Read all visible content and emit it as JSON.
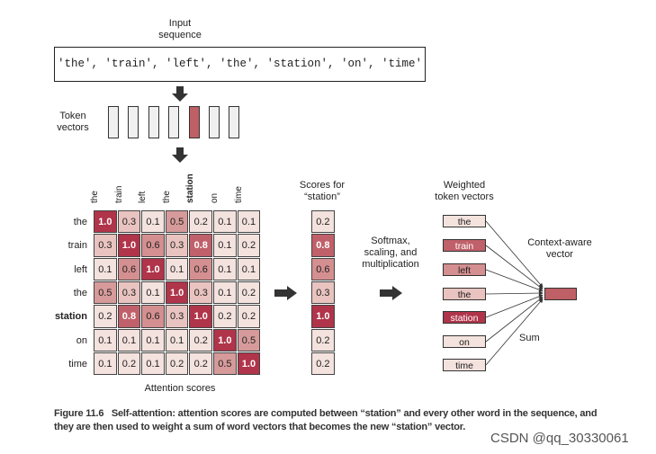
{
  "input_label": "Input sequence",
  "input_sequence": "'the', 'train', 'left', 'the', 'station', 'on', 'time'",
  "token_vectors_label": "Token vectors",
  "tokens": [
    "the",
    "train",
    "left",
    "the",
    "station",
    "on",
    "time"
  ],
  "highlight_token_index": 4,
  "matrix": [
    [
      1.0,
      0.3,
      0.1,
      0.5,
      0.2,
      0.1,
      0.1
    ],
    [
      0.3,
      1.0,
      0.6,
      0.3,
      0.8,
      0.1,
      0.2
    ],
    [
      0.1,
      0.6,
      1.0,
      0.1,
      0.6,
      0.1,
      0.1
    ],
    [
      0.5,
      0.3,
      0.1,
      1.0,
      0.3,
      0.1,
      0.2
    ],
    [
      0.2,
      0.8,
      0.6,
      0.3,
      1.0,
      0.2,
      0.2
    ],
    [
      0.1,
      0.1,
      0.1,
      0.1,
      0.2,
      1.0,
      0.5
    ],
    [
      0.1,
      0.2,
      0.1,
      0.2,
      0.2,
      0.5,
      1.0
    ]
  ],
  "matrix_label": "Attention scores",
  "scores_label": "Scores for “station”",
  "station_scores": [
    "0.2",
    "0.8",
    "0.6",
    "0.3",
    "1.0",
    "0.2",
    "0.2"
  ],
  "softmax_label": "Softmax, scaling, and multiplication",
  "weighted_label": "Weighted token vectors",
  "context_label": "Context-aware vector",
  "sum_label": "Sum",
  "caption_title": "Figure 11.6",
  "caption_text": "Self-attention: attention scores are computed between “station” and every other word in the sequence, and they are then used to weight a sum of word vectors that becomes the new “station” vector.",
  "watermark": "CSDN @qq_30330061",
  "colors": {
    "1.0": "#b0344a",
    "0.8": "#c0606a",
    "0.6": "#d48f90",
    "0.5": "#d69a9a",
    "0.3": "#e9c3bf",
    "0.2": "#f3e2dd",
    "0.1": "#f3e2dd",
    "vector_highlight": "#bf5f66"
  }
}
